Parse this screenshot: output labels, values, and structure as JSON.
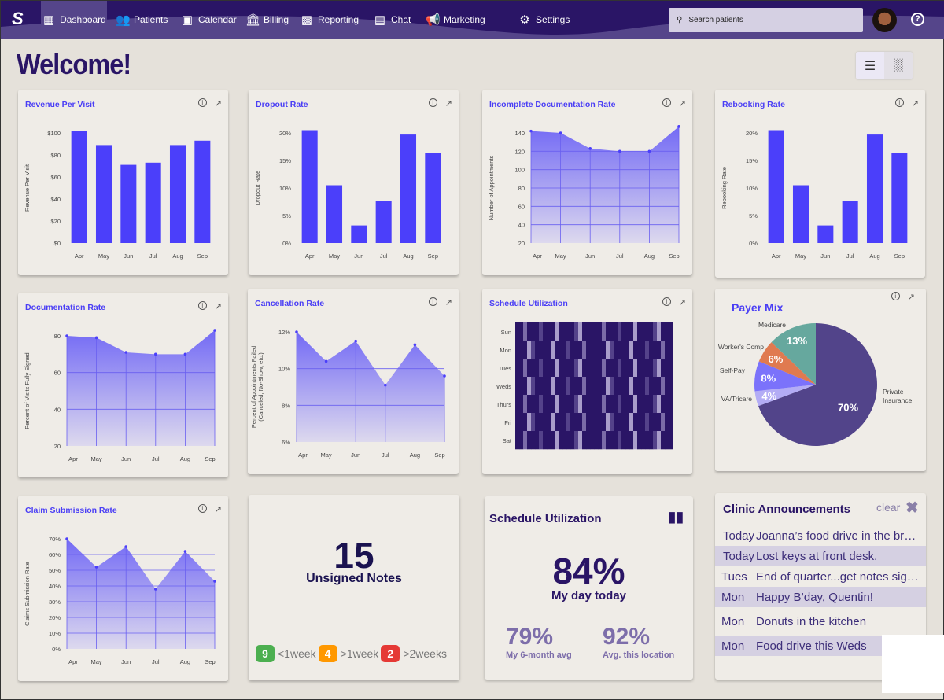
{
  "nav": {
    "items": [
      {
        "label": "Dashboard",
        "icon": "dashboard-icon",
        "active": true
      },
      {
        "label": "Patients",
        "icon": "patients-icon"
      },
      {
        "label": "Calendar",
        "icon": "calendar-icon"
      },
      {
        "label": "Billing",
        "icon": "billing-icon"
      },
      {
        "label": "Reporting",
        "icon": "reporting-icon"
      },
      {
        "label": "Chat",
        "icon": "chat-icon"
      },
      {
        "label": "Marketing",
        "icon": "megaphone-icon"
      },
      {
        "label": "Settings",
        "icon": "gear-icon"
      }
    ],
    "search_placeholder": "Search patients",
    "help": "?"
  },
  "page": {
    "title": "Welcome!"
  },
  "colors": {
    "nav": "#2a1566",
    "accent": "#4a3ef5",
    "bar": "#4b3ffa",
    "green": "#4caf50",
    "orange": "#ff9800",
    "red": "#e53935"
  },
  "chart_data": [
    {
      "id": "revenue",
      "type": "bar",
      "title": "Revenue Per Visit",
      "ylabel": "Revenue Per Visit",
      "categories": [
        "Apr",
        "May",
        "Jun",
        "Jul",
        "Aug",
        "Sep"
      ],
      "values": [
        102,
        89,
        71,
        73,
        89,
        93
      ],
      "ylim": [
        0,
        100
      ],
      "ticks": [
        0,
        20,
        40,
        60,
        80,
        100
      ],
      "tick_labels": [
        "$0",
        "$20",
        "$40",
        "$60",
        "$80",
        "$100"
      ]
    },
    {
      "id": "dropout",
      "type": "bar",
      "title": "Dropout Rate",
      "ylabel": "Dropout Rate",
      "categories": [
        "Apr",
        "May",
        "Jun",
        "Jul",
        "Aug",
        "Sep"
      ],
      "values": [
        20.5,
        10.5,
        3.2,
        7.7,
        19.7,
        16.4
      ],
      "ylim": [
        0,
        20
      ],
      "ticks": [
        0,
        5,
        10,
        15,
        20
      ],
      "tick_labels": [
        "0%",
        "5%",
        "10%",
        "15%",
        "20%"
      ]
    },
    {
      "id": "incomplete",
      "type": "area",
      "title": "Incomplete Documentation Rate",
      "ylabel": "Number of Appointments",
      "categories": [
        "Apr",
        "May",
        "Jun",
        "Jul",
        "Aug",
        "Sep"
      ],
      "values": [
        142,
        140,
        123,
        120,
        120,
        147
      ],
      "ylim": [
        20,
        140
      ],
      "ticks": [
        20,
        40,
        60,
        80,
        100,
        120,
        140
      ],
      "tick_labels": [
        "20",
        "40",
        "60",
        "80",
        "100",
        "120",
        "140"
      ]
    },
    {
      "id": "rebooking",
      "type": "bar",
      "title": "Rebooking Rate",
      "ylabel": "Rebooking Rate",
      "categories": [
        "Apr",
        "May",
        "Jun",
        "Jul",
        "Aug",
        "Sep"
      ],
      "values": [
        20.5,
        10.5,
        3.2,
        7.7,
        19.7,
        16.4
      ],
      "ylim": [
        0,
        20
      ],
      "ticks": [
        0,
        5,
        10,
        15,
        20
      ],
      "tick_labels": [
        "0%",
        "5%",
        "10%",
        "15%",
        "20%"
      ]
    },
    {
      "id": "documentation",
      "type": "area",
      "title": "Documentation Rate",
      "ylabel": "Percent of Visits Fully Signed",
      "categories": [
        "Apr",
        "May",
        "Jun",
        "Jul",
        "Aug",
        "Sep"
      ],
      "values": [
        80,
        79,
        71,
        70,
        70,
        83
      ],
      "ylim": [
        20,
        80
      ],
      "ticks": [
        20,
        40,
        60,
        80
      ],
      "tick_labels": [
        "20",
        "40",
        "60",
        "80"
      ]
    },
    {
      "id": "cancellation",
      "type": "area",
      "title": "Cancellation Rate",
      "ylabel": "Percent of Appointments Failed",
      "ylabel2": "(Canceled, No-Show, etc.)",
      "categories": [
        "Apr",
        "May",
        "Jun",
        "Jul",
        "Aug",
        "Sep"
      ],
      "values": [
        12,
        10.4,
        11.5,
        9.1,
        11.3,
        9.6
      ],
      "ylim": [
        6,
        12
      ],
      "ticks": [
        6,
        8,
        10,
        12
      ],
      "tick_labels": [
        "6%",
        "8%",
        "10%",
        "12%"
      ]
    },
    {
      "id": "heatmap",
      "type": "heatmap",
      "title": "Schedule Utilization",
      "rows": [
        "Sun",
        "Mon",
        "Tues",
        "Weds",
        "Thurs",
        "Fri",
        "Sat"
      ],
      "values": [
        [
          0,
          0,
          2,
          0,
          0,
          0,
          1,
          0,
          0,
          0,
          3,
          0,
          0,
          0,
          0,
          1,
          3,
          0,
          0,
          0,
          0,
          0,
          2,
          0,
          0,
          0,
          1,
          0,
          0,
          0,
          3,
          0,
          0,
          0,
          0,
          1,
          3,
          0,
          0,
          0
        ],
        [
          0,
          0,
          0,
          3,
          1,
          0,
          0,
          0,
          0,
          3,
          0,
          0,
          0,
          1,
          0,
          0,
          0,
          2,
          0,
          0,
          0,
          0,
          0,
          3,
          1,
          0,
          0,
          0,
          0,
          3,
          0,
          0,
          0,
          1,
          0,
          0,
          0,
          2,
          0,
          0
        ],
        [
          0,
          0,
          2,
          0,
          0,
          0,
          1,
          0,
          0,
          0,
          3,
          0,
          0,
          0,
          0,
          1,
          3,
          0,
          0,
          0,
          0,
          0,
          2,
          0,
          0,
          0,
          1,
          0,
          0,
          0,
          3,
          0,
          0,
          0,
          0,
          1,
          3,
          0,
          0,
          0
        ],
        [
          0,
          0,
          0,
          3,
          1,
          0,
          0,
          0,
          0,
          3,
          0,
          0,
          0,
          1,
          0,
          0,
          0,
          2,
          0,
          0,
          0,
          0,
          0,
          3,
          1,
          0,
          0,
          0,
          0,
          3,
          0,
          0,
          0,
          1,
          0,
          0,
          0,
          2,
          0,
          0
        ],
        [
          0,
          0,
          2,
          0,
          0,
          0,
          1,
          0,
          0,
          0,
          3,
          0,
          0,
          0,
          0,
          1,
          3,
          0,
          0,
          0,
          0,
          0,
          2,
          0,
          0,
          0,
          1,
          0,
          0,
          0,
          3,
          0,
          0,
          0,
          0,
          1,
          3,
          0,
          0,
          0
        ],
        [
          0,
          0,
          0,
          3,
          1,
          0,
          0,
          0,
          0,
          3,
          0,
          0,
          0,
          1,
          0,
          0,
          0,
          2,
          0,
          0,
          0,
          0,
          0,
          3,
          1,
          0,
          0,
          0,
          0,
          3,
          0,
          0,
          0,
          1,
          0,
          0,
          0,
          2,
          0,
          0
        ],
        [
          0,
          0,
          2,
          0,
          0,
          0,
          1,
          0,
          0,
          0,
          3,
          0,
          0,
          0,
          0,
          1,
          3,
          0,
          0,
          0,
          0,
          0,
          2,
          0,
          0,
          0,
          1,
          0,
          0,
          0,
          3,
          0,
          0,
          0,
          0,
          1,
          3,
          0,
          0,
          0
        ]
      ],
      "colors": [
        "#2a1566",
        "#54428a",
        "#7b6ba8",
        "#a99dca"
      ]
    },
    {
      "id": "payer",
      "type": "pie",
      "title": "Payer Mix",
      "slices": [
        {
          "label": "Private Insurance",
          "value": 70,
          "text": "70%",
          "color": "#52448a"
        },
        {
          "label": "VA/Tricare",
          "value": 4,
          "text": "4%",
          "color": "#b3acf5"
        },
        {
          "label": "Self-Pay",
          "value": 8,
          "text": "8%",
          "color": "#7b72fb"
        },
        {
          "label": "Worker's Comp",
          "value": 6,
          "text": "6%",
          "color": "#e07a50"
        },
        {
          "label": "Medicare",
          "value": 13,
          "text": "13%",
          "color": "#66a89e"
        }
      ]
    },
    {
      "id": "claim",
      "type": "area",
      "title": "Claim Submission Rate",
      "ylabel": "Claims Submission Rate",
      "categories": [
        "Apr",
        "May",
        "Jun",
        "Jul",
        "Aug",
        "Sep"
      ],
      "values": [
        70,
        52,
        65,
        38,
        62,
        43
      ],
      "ylim": [
        0,
        70
      ],
      "ticks": [
        0,
        10,
        20,
        30,
        40,
        50,
        60,
        70
      ],
      "tick_labels": [
        "0%",
        "10%",
        "20%",
        "30%",
        "40%",
        "50%",
        "60%",
        "70%"
      ]
    }
  ],
  "notes": {
    "count": "15",
    "label": "Unsigned Notes",
    "badges": [
      {
        "n": "9",
        "label": "<1week",
        "color": "#4caf50"
      },
      {
        "n": "4",
        "label": ">1week",
        "color": "#ff9800"
      },
      {
        "n": "2",
        "label": ">2weeks",
        "color": "#e53935"
      }
    ]
  },
  "util": {
    "title": "Schedule Utilization",
    "main": "84%",
    "main_label": "My day today",
    "avg": "79%",
    "avg_label": "My 6-month avg",
    "loc": "92%",
    "loc_label": "Avg. this location"
  },
  "announcements": {
    "title": "Clinic Announcements",
    "clear": "clear",
    "items": [
      {
        "day": "Today",
        "text": "Joanna’s food drive in the break room"
      },
      {
        "day": "Today",
        "text": "Lost keys at front desk."
      },
      {
        "day": "Tues",
        "text": "End of quarter...get notes signed!"
      },
      {
        "day": "Mon",
        "text": "Happy B’day, Quentin!"
      },
      {
        "day": "Mon",
        "text": "Donuts in the kitchen"
      },
      {
        "day": "Mon",
        "text": "Food drive this Weds"
      }
    ]
  }
}
